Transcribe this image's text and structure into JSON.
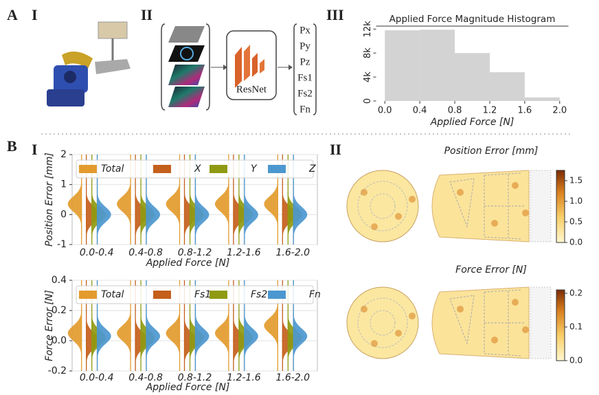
{
  "panel_labels": [
    "A",
    "I",
    "II",
    "III",
    "B",
    "I",
    "II"
  ],
  "diagram": {
    "network": "ResNet",
    "outputs": [
      "Px",
      "Py",
      "Pz",
      "Fs1",
      "Fs2",
      "Fn"
    ]
  },
  "chart_data": [
    {
      "type": "histogram",
      "title": "Applied Force Magnitude Histogram",
      "x_label": "Applied Force [N]",
      "bins": [
        0,
        0.4,
        0.8,
        1.2,
        1.6,
        2.0
      ],
      "values": [
        11800,
        11900,
        8000,
        4800,
        600
      ],
      "color": "#d3d3d3",
      "xlim": [
        -0.1,
        2.1
      ],
      "ylim": [
        0,
        12500
      ],
      "xticks": [
        {
          "value": 0,
          "label": "0.0"
        },
        0.4,
        0.8,
        1.2,
        1.6,
        {
          "value": 2,
          "label": "2.0"
        }
      ],
      "yticks": [
        0,
        {
          "value": 4000,
          "label": "4k"
        },
        {
          "value": 8000,
          "label": "8k"
        },
        {
          "value": 12000,
          "label": "12k"
        }
      ]
    },
    {
      "type": "violin",
      "x_label": "Applied Force [N]",
      "y_label": "Position Error [mm]",
      "categories": [
        "0.0-0.4",
        "0.4-0.8",
        "0.8-1.2",
        "1.2-1.6",
        "1.6-2.0"
      ],
      "series": [
        {
          "name": "Total",
          "color": "#e39b2e",
          "values": [
            0.35,
            0.35,
            0.35,
            0.35,
            0.35
          ]
        },
        {
          "name": "X",
          "color": "#c45f1c",
          "values": [
            0,
            0,
            0,
            0,
            0
          ]
        },
        {
          "name": "Y",
          "color": "#8f9a12",
          "values": [
            0,
            0,
            0,
            0,
            0
          ]
        },
        {
          "name": "Z",
          "color": "#4c97cf",
          "values": [
            0,
            0,
            0,
            0,
            0
          ]
        }
      ],
      "ylim": [
        -1,
        2
      ],
      "yticks": [
        -1,
        0,
        1,
        2
      ],
      "grid": true
    },
    {
      "type": "violin",
      "x_label": "Applied Force [N]",
      "y_label": "Force Error [N]",
      "categories": [
        "0.0-0.4",
        "0.4-0.8",
        "0.8-1.2",
        "1.2-1.6",
        "1.6-2.0"
      ],
      "series": [
        {
          "name": "Total",
          "color": "#e39b2e",
          "values": [
            0.05,
            0.05,
            0.05,
            0.05,
            0.1
          ]
        },
        {
          "name": "Fs1",
          "color": "#c45f1c",
          "values": [
            0,
            0,
            0,
            0,
            0
          ]
        },
        {
          "name": "Fs2",
          "color": "#8f9a12",
          "values": [
            0.02,
            0.02,
            0.02,
            0.02,
            0.02
          ]
        },
        {
          "name": "Fn",
          "color": "#4c97cf",
          "values": [
            0.03,
            0.03,
            0.03,
            0.03,
            0.03
          ]
        }
      ],
      "ylim": [
        -0.2,
        0.4
      ],
      "yticks": [
        {
          "value": -0.2,
          "label": "-0.2"
        },
        {
          "value": 0,
          "label": "0.0"
        },
        0.2,
        0.4
      ],
      "grid": true
    },
    {
      "type": "heatmap",
      "title": "Position Error [mm]",
      "clim": [
        0,
        1.75
      ],
      "cticks": [
        {
          "value": 0,
          "label": "0.0"
        },
        0.5,
        {
          "value": 1,
          "label": "1.0"
        },
        1.5
      ]
    },
    {
      "type": "heatmap",
      "title": "Force Error [N]",
      "clim": [
        0,
        0.21
      ],
      "cticks": [
        {
          "value": 0,
          "label": "0.0"
        },
        0.1,
        0.2
      ]
    }
  ]
}
